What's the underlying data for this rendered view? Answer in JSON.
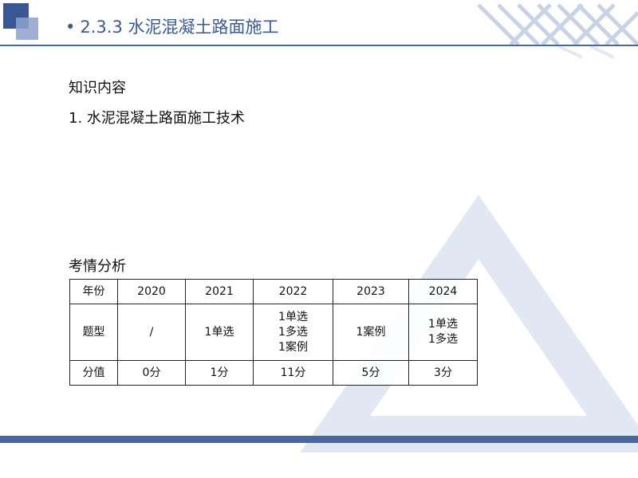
{
  "title": {
    "bullet": "•",
    "text": "2.3.3 水泥混凝土路面施工"
  },
  "content": {
    "heading": "知识内容",
    "item": "1. 水泥混凝土路面施工技术"
  },
  "exam": {
    "heading": "考情分析",
    "table": {
      "row_labels": [
        "年份",
        "题型",
        "分值"
      ],
      "years": [
        "2020",
        "2021",
        "2022",
        "2023",
        "2024"
      ],
      "types": [
        [
          "/"
        ],
        [
          "1单选"
        ],
        [
          "1单选",
          "1多选",
          "1案例"
        ],
        [
          "1案例"
        ],
        [
          "1单选",
          "1多选"
        ]
      ],
      "scores": [
        "0分",
        "1分",
        "11分",
        "5分",
        "3分"
      ]
    }
  },
  "colors": {
    "accent": "#4a67a4",
    "title": "#3c5a92"
  }
}
